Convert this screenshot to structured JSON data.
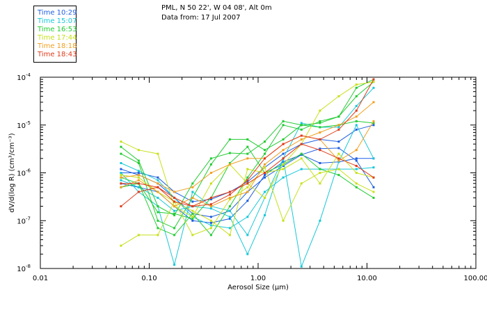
{
  "header": {
    "location": "PML, N 50 22', W 04 08', Alt 0m",
    "date_line": "Data from: 17 Jul 2007"
  },
  "legend": [
    {
      "label": "Time 10:29",
      "color": "#1f5fe0"
    },
    {
      "label": "Time 15:07",
      "color": "#16c8d8"
    },
    {
      "label": "Time 16:53",
      "color": "#22cc33"
    },
    {
      "label": "Time 17:44",
      "color": "#c8e01a"
    },
    {
      "label": "Time 18:18",
      "color": "#f0a020"
    },
    {
      "label": "Time 18:43",
      "color": "#e03a1a"
    }
  ],
  "chart_data": {
    "type": "line",
    "xscale": "log",
    "yscale": "log",
    "xlim": [
      0.01,
      100
    ],
    "ylim": [
      1e-08,
      0.0001
    ],
    "xlabel": "Aerosol Size (μm)",
    "ylabel": "dV/d(log R) (cm³/cm⁻³)",
    "x_tick_labels": [
      "0.01",
      "0.10",
      "1.00",
      "10.00",
      "100.00"
    ],
    "y_tick_labels": [
      {
        "mantissa": "10",
        "exp": "-8"
      },
      {
        "mantissa": "10",
        "exp": "-7"
      },
      {
        "mantissa": "10",
        "exp": "-6"
      },
      {
        "mantissa": "10",
        "exp": "-5"
      },
      {
        "mantissa": "10",
        "exp": "-4"
      }
    ],
    "x": [
      0.055,
      0.08,
      0.12,
      0.17,
      0.25,
      0.37,
      0.55,
      0.8,
      1.15,
      1.7,
      2.5,
      3.7,
      5.5,
      8,
      11.5
    ],
    "series": [
      {
        "color": "#1f5fe0",
        "values": [
          1e-06,
          1e-06,
          8e-07,
          4e-07,
          2.5e-07,
          2.8e-07,
          4e-07,
          6.5e-07,
          1.3e-06,
          2.5e-06,
          4e-06,
          5e-06,
          4.5e-06,
          8e-06,
          1e-05
        ]
      },
      {
        "color": "#1f5fe0",
        "values": [
          1.2e-06,
          9e-07,
          6e-07,
          3e-07,
          1.4e-07,
          1.2e-07,
          1.6e-07,
          4e-07,
          8e-07,
          1.4e-06,
          2.4e-06,
          3.2e-06,
          3.3e-06,
          1.8e-06,
          5e-07
        ]
      },
      {
        "color": "#1f5fe0",
        "values": [
          6e-07,
          5e-07,
          4e-07,
          2e-07,
          1e-07,
          9e-08,
          1.1e-07,
          2.6e-07,
          9e-07,
          1.7e-06,
          2.4e-06,
          1.6e-06,
          1.7e-06,
          2e-06,
          2e-06
        ]
      },
      {
        "color": "#16c8d8",
        "values": [
          1.6e-06,
          1.1e-06,
          7e-07,
          3e-07,
          1.2e-07,
          8e-08,
          7e-08,
          1.2e-07,
          4e-07,
          8e-07,
          1.2e-06,
          1.2e-06,
          1.2e-06,
          1.2e-06,
          1.3e-06
        ]
      },
      {
        "color": "#16c8d8",
        "values": [
          1e-06,
          4e-07,
          2e-07,
          1.2e-08,
          4e-07,
          2e-07,
          1.6e-07,
          5e-08,
          3e-07,
          2e-06,
          1.1e-08,
          1e-07,
          1.7e-06,
          1e-05,
          2e-06
        ]
      },
      {
        "color": "#16c8d8",
        "values": [
          7e-07,
          5e-07,
          3e-07,
          1.6e-07,
          2e-07,
          1.8e-07,
          1.2e-07,
          2e-08,
          1.3e-07,
          2e-06,
          1.1e-05,
          9e-06,
          9e-06,
          2.5e-05,
          6e-05
        ]
      },
      {
        "color": "#22cc33",
        "values": [
          3.5e-06,
          1.8e-06,
          2e-07,
          1.3e-07,
          6e-07,
          2e-06,
          2.6e-06,
          2.5e-06,
          4.5e-06,
          1.2e-05,
          1e-05,
          1.1e-05,
          1.5e-05,
          4e-05,
          8e-05
        ]
      },
      {
        "color": "#22cc33",
        "values": [
          5e-07,
          6e-07,
          7e-08,
          5e-08,
          1.4e-07,
          5e-08,
          2e-07,
          8e-07,
          2.5e-06,
          1e-05,
          8e-06,
          1.2e-05,
          1.5e-05,
          6e-05,
          9e-05
        ]
      },
      {
        "color": "#22cc33",
        "values": [
          8e-07,
          6e-07,
          1.5e-07,
          1.4e-07,
          1.1e-07,
          3e-07,
          1.6e-06,
          3.5e-06,
          1e-06,
          1.5e-06,
          2.5e-06,
          1.2e-06,
          9e-07,
          5e-07,
          3e-07
        ]
      },
      {
        "color": "#22cc33",
        "values": [
          2.5e-06,
          1.6e-06,
          1e-07,
          7e-08,
          3e-07,
          1.5e-06,
          5e-06,
          5e-06,
          3e-06,
          5e-06,
          1e-05,
          9e-06,
          1e-05,
          1.2e-05,
          1.1e-05
        ]
      },
      {
        "color": "#c8e01a",
        "values": [
          3e-08,
          5e-08,
          5e-08,
          2.5e-07,
          5e-08,
          7e-08,
          2.8e-07,
          5e-07,
          1.3e-06,
          1e-07,
          6e-07,
          1e-06,
          1.2e-06,
          6e-07,
          4e-07
        ]
      },
      {
        "color": "#c8e01a",
        "values": [
          4.5e-06,
          3e-06,
          2.5e-06,
          2e-07,
          1.2e-07,
          6e-07,
          1.5e-06,
          6e-07,
          3e-07,
          1.5e-06,
          4e-06,
          2e-05,
          4e-05,
          7e-05,
          8e-05
        ]
      },
      {
        "color": "#c8e01a",
        "values": [
          9e-07,
          8e-07,
          4e-07,
          2.5e-07,
          1.6e-07,
          1e-07,
          5e-08,
          1.2e-06,
          1e-06,
          1.2e-06,
          2e-06,
          6e-07,
          2.5e-06,
          1e-06,
          8e-07
        ]
      },
      {
        "color": "#f0a020",
        "values": [
          5e-07,
          7e-07,
          4e-07,
          2e-07,
          3e-07,
          2e-07,
          3e-07,
          4e-07,
          1.5e-06,
          3e-06,
          5e-06,
          7e-06,
          1e-05,
          1.5e-05,
          3e-05
        ]
      },
      {
        "color": "#f0a020",
        "values": [
          8e-07,
          9e-07,
          6e-07,
          4e-07,
          5e-07,
          1e-06,
          1.5e-06,
          2e-06,
          2e-06,
          4e-06,
          6e-06,
          5e-06,
          1.8e-06,
          3e-06,
          1.2e-05
        ]
      },
      {
        "color": "#e03a1a",
        "values": [
          2e-07,
          4e-07,
          5e-07,
          2.5e-07,
          2e-07,
          2.2e-07,
          3.5e-07,
          7e-07,
          2e-06,
          4e-06,
          6e-06,
          5e-06,
          8e-06,
          2e-05,
          9e-05
        ]
      },
      {
        "color": "#e03a1a",
        "values": [
          6e-07,
          6e-07,
          5e-07,
          3e-07,
          2e-07,
          3e-07,
          4e-07,
          6e-07,
          1e-06,
          2e-06,
          4e-06,
          3e-06,
          2e-06,
          1.4e-06,
          8e-07
        ]
      }
    ]
  }
}
